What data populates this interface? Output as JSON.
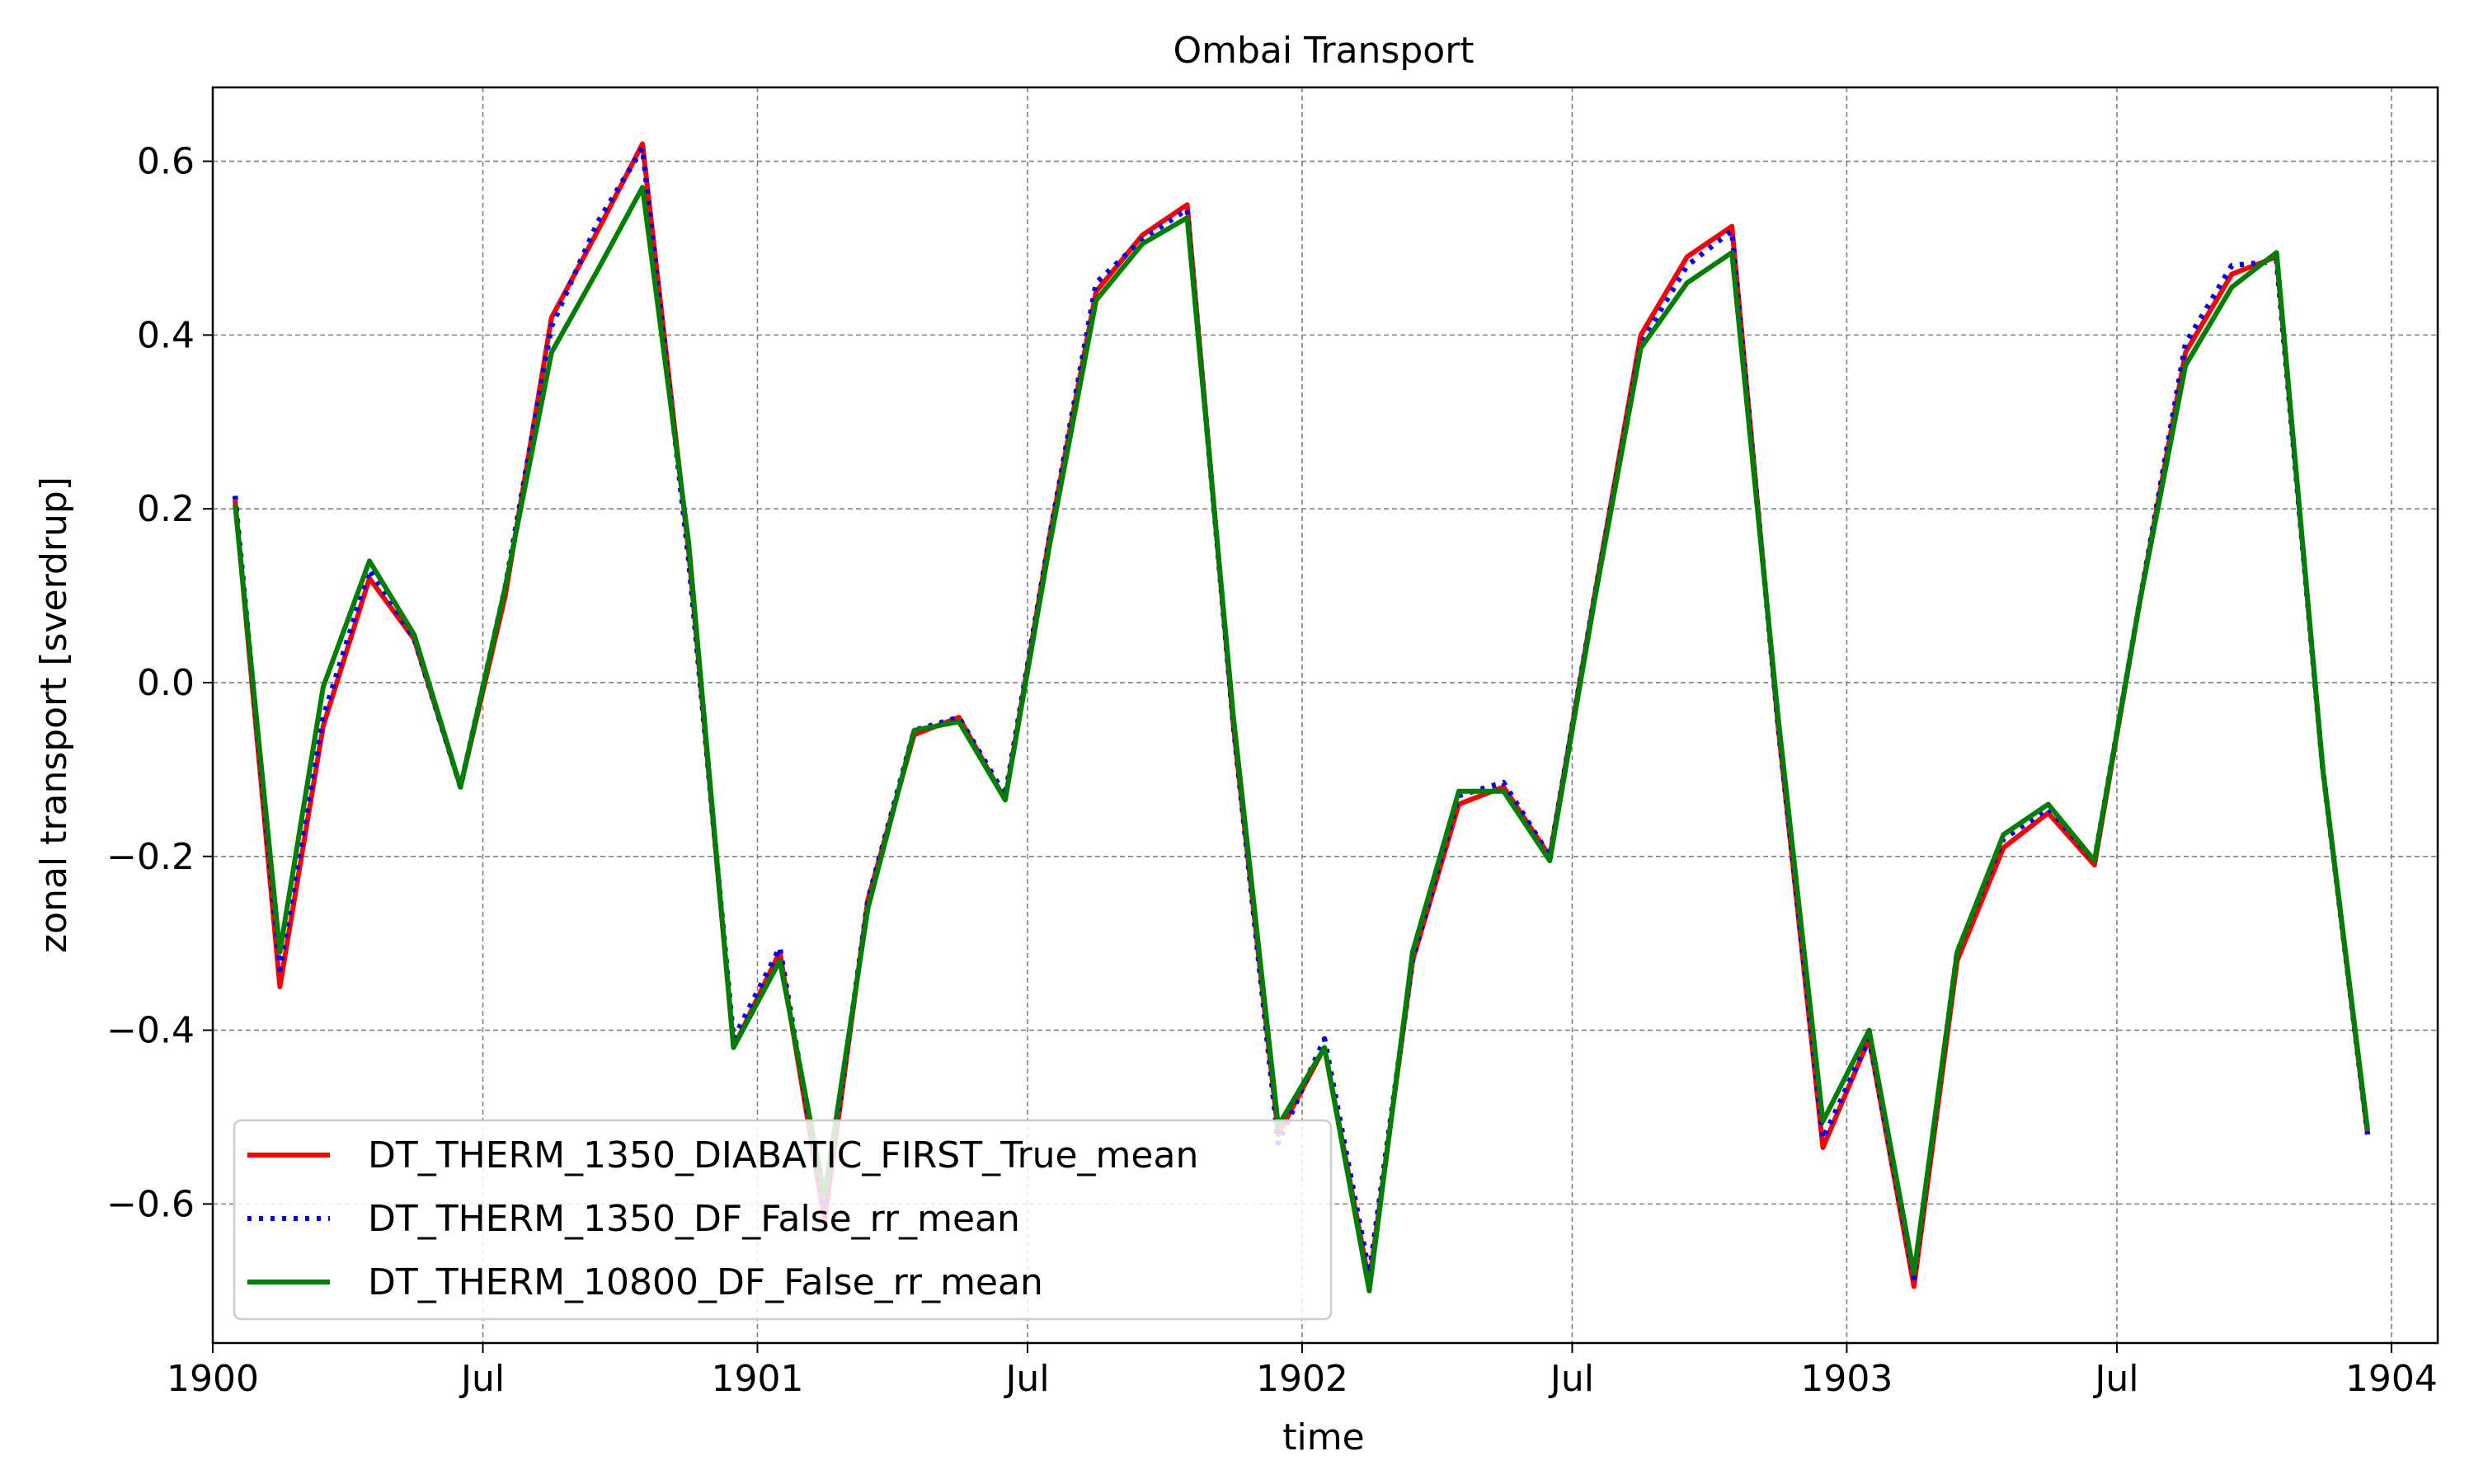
{
  "chart_data": {
    "type": "line",
    "title": "Ombai Transport",
    "xlabel": "time",
    "ylabel": "zonal transport [sverdrup]",
    "xlim": [
      "1900-01-01",
      "1904-02-01"
    ],
    "ylim": [
      -0.76,
      0.685
    ],
    "grid": true,
    "legend": "lower-left",
    "x_ticks": [
      {
        "date": "1900-01-01",
        "label": "1900"
      },
      {
        "date": "1900-07-01",
        "label": "Jul"
      },
      {
        "date": "1901-01-01",
        "label": "1901"
      },
      {
        "date": "1901-07-01",
        "label": "Jul"
      },
      {
        "date": "1902-01-01",
        "label": "1902"
      },
      {
        "date": "1902-07-01",
        "label": "Jul"
      },
      {
        "date": "1903-01-01",
        "label": "1903"
      },
      {
        "date": "1903-07-01",
        "label": "Jul"
      },
      {
        "date": "1904-01-01",
        "label": "1904"
      }
    ],
    "y_ticks": [
      {
        "value": 0.6,
        "label": "0.6"
      },
      {
        "value": 0.4,
        "label": "0.4"
      },
      {
        "value": 0.2,
        "label": "0.2"
      },
      {
        "value": 0.0,
        "label": "0.0"
      },
      {
        "value": -0.2,
        "label": "−0.2"
      },
      {
        "value": -0.4,
        "label": "−0.4"
      },
      {
        "value": -0.6,
        "label": "−0.6"
      }
    ],
    "x": [
      "1900-01-16",
      "1900-02-15",
      "1900-03-16",
      "1900-04-16",
      "1900-05-16",
      "1900-06-16",
      "1900-07-16",
      "1900-08-16",
      "1900-09-16",
      "1900-10-16",
      "1900-11-16",
      "1900-12-16",
      "1901-01-16",
      "1901-02-15",
      "1901-03-16",
      "1901-04-16",
      "1901-05-16",
      "1901-06-16",
      "1901-07-16",
      "1901-08-16",
      "1901-09-16",
      "1901-10-16",
      "1901-11-16",
      "1901-12-16",
      "1902-01-16",
      "1902-02-15",
      "1902-03-16",
      "1902-04-16",
      "1902-05-16",
      "1902-06-16",
      "1902-07-16",
      "1902-08-16",
      "1902-09-16",
      "1902-10-16",
      "1902-11-16",
      "1902-12-16",
      "1903-01-16",
      "1903-02-15",
      "1903-03-16",
      "1903-04-16",
      "1903-05-16",
      "1903-06-16",
      "1903-07-16",
      "1903-08-16",
      "1903-09-16",
      "1903-10-16",
      "1903-11-16",
      "1903-12-16"
    ],
    "series": [
      {
        "name": "DT_THERM_1350_DIABATIC_FIRST_True_mean",
        "color": "#ff0000",
        "style": "solid",
        "values": [
          0.21,
          -0.35,
          -0.05,
          0.12,
          0.05,
          -0.12,
          0.1,
          0.42,
          0.52,
          0.62,
          0.15,
          -0.42,
          -0.31,
          -0.62,
          -0.25,
          -0.06,
          -0.04,
          -0.135,
          0.17,
          0.45,
          0.515,
          0.55,
          -0.05,
          -0.52,
          -0.42,
          -0.69,
          -0.32,
          -0.14,
          -0.12,
          -0.2,
          0.1,
          0.4,
          0.49,
          0.525,
          -0.05,
          -0.535,
          -0.41,
          -0.695,
          -0.32,
          -0.19,
          -0.15,
          -0.21,
          0.09,
          0.38,
          0.47,
          0.49,
          -0.1,
          -0.52
        ]
      },
      {
        "name": "DT_THERM_1350_DF_False_rr_mean",
        "color": "#0000ff",
        "style": "dotted",
        "values": [
          0.215,
          -0.33,
          -0.04,
          0.13,
          0.05,
          -0.12,
          0.11,
          0.41,
          0.53,
          0.615,
          0.14,
          -0.41,
          -0.305,
          -0.61,
          -0.25,
          -0.055,
          -0.04,
          -0.13,
          0.17,
          0.46,
          0.51,
          0.545,
          -0.05,
          -0.53,
          -0.41,
          -0.68,
          -0.32,
          -0.13,
          -0.115,
          -0.2,
          0.1,
          0.39,
          0.48,
          0.52,
          -0.05,
          -0.525,
          -0.41,
          -0.685,
          -0.31,
          -0.18,
          -0.145,
          -0.205,
          0.09,
          0.39,
          0.48,
          0.485,
          -0.1,
          -0.52
        ]
      },
      {
        "name": "DT_THERM_10800_DF_False_rr_mean",
        "color": "#008000",
        "style": "solid",
        "values": [
          0.205,
          -0.31,
          -0.005,
          0.14,
          0.055,
          -0.12,
          0.11,
          0.38,
          0.475,
          0.57,
          0.16,
          -0.42,
          -0.32,
          -0.59,
          -0.26,
          -0.055,
          -0.045,
          -0.135,
          0.16,
          0.44,
          0.505,
          0.535,
          -0.04,
          -0.51,
          -0.42,
          -0.7,
          -0.31,
          -0.125,
          -0.125,
          -0.205,
          0.095,
          0.385,
          0.46,
          0.495,
          -0.04,
          -0.505,
          -0.4,
          -0.68,
          -0.31,
          -0.175,
          -0.14,
          -0.205,
          0.09,
          0.365,
          0.455,
          0.495,
          -0.1,
          -0.515
        ]
      }
    ]
  }
}
